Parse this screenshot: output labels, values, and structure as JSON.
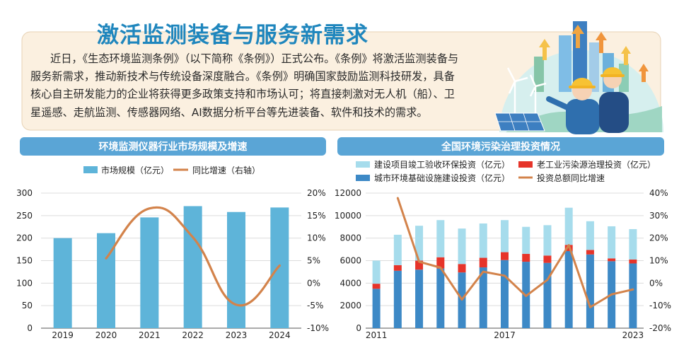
{
  "header": {
    "title": "激活监测装备与服务新需求",
    "paragraph_lines": [
      "近日，《生态环境监测条例》（以下简称《条例》）正式公布。《条例》将激活监测装备与",
      "服务新需求，推动新技术与传统设备深度融合。《条例》明确国家鼓励监测科技研发，具备",
      "核心自主研发能力的企业将获得更多政策支持和市场认可；将直接刺激对无人机（船）、卫",
      "星遥感、走航监测、传感器网络、AI数据分析平台等先进装备、软件和技术的需求。"
    ]
  },
  "colors": {
    "title_blue": "#1f86bd",
    "band_blue": "#5aa5d6",
    "card_bg": "#fbf0e0",
    "bar_blue": "#5eb4d9",
    "dark_blue": "#3d89c6",
    "light_blue": "#a6dcec",
    "red": "#e6342a",
    "orange": "#d3834b"
  },
  "chart_data": [
    {
      "type": "bar",
      "title": "环境监测仪器行业市场规模及增速",
      "legend": [
        "市场规模（亿元）",
        "同比增速（右轴）"
      ],
      "categories": [
        "2019",
        "2020",
        "2021",
        "2022",
        "2023",
        "2024"
      ],
      "series": [
        {
          "name": "市场规模（亿元）",
          "type": "bar",
          "values": [
            200,
            211,
            246,
            271,
            258,
            268
          ]
        },
        {
          "name": "同比增速（右轴）",
          "type": "line",
          "axis": "right",
          "values": [
            null,
            5.5,
            16.6,
            10.2,
            -4.8,
            3.9
          ]
        }
      ],
      "ylim": [
        0,
        300
      ],
      "yticks": [
        0,
        50,
        100,
        150,
        200,
        250,
        300
      ],
      "y2lim": [
        -10,
        20
      ],
      "y2ticks": [
        20,
        15,
        10,
        5,
        0,
        -5,
        -10
      ],
      "y2tick_labels": [
        "20%",
        "15%",
        "10%",
        "5%",
        "0%",
        "-5%",
        "-10%"
      ]
    },
    {
      "type": "bar",
      "stacked": true,
      "title": "全国环境污染治理投资情况",
      "legend": [
        "建设项目竣工验收环保投资（亿元）",
        "老工业污染源治理投资（亿元）",
        "城市环境基础设施建设投资（亿元）",
        "投资总额同比增速"
      ],
      "categories": [
        "2011",
        "2012",
        "2013",
        "2014",
        "2015",
        "2016",
        "2017",
        "2018",
        "2019",
        "2020",
        "2021",
        "2022",
        "2023"
      ],
      "x_tick_labels": [
        "2011",
        "2017",
        "2023"
      ],
      "series": [
        {
          "name": "城市环境基础设施建设投资（亿元）",
          "type": "bar",
          "values": [
            3500,
            5100,
            5200,
            5300,
            4950,
            5400,
            6050,
            5900,
            5800,
            6850,
            6550,
            5950,
            5750
          ]
        },
        {
          "name": "老工业污染源治理投资（亿元）",
          "type": "bar",
          "values": [
            450,
            500,
            800,
            1000,
            750,
            850,
            700,
            700,
            650,
            550,
            400,
            250,
            350
          ]
        },
        {
          "name": "建设项目竣工验收环保投资（亿元）",
          "type": "bar",
          "values": [
            2050,
            2700,
            3100,
            3300,
            3150,
            3050,
            2850,
            2400,
            2700,
            3300,
            2550,
            2850,
            2700
          ]
        },
        {
          "name": "投资总额同比增速",
          "type": "line",
          "axis": "right",
          "values": [
            null,
            37.8,
            9.5,
            6.9,
            -7.3,
            5.1,
            3.3,
            -5.7,
            1.5,
            16.9,
            -10.7,
            -5.0,
            -2.8
          ]
        }
      ],
      "ylim": [
        0,
        12000
      ],
      "yticks": [
        0,
        2000,
        4000,
        6000,
        8000,
        10000,
        12000
      ],
      "y2lim": [
        -20,
        40
      ],
      "y2ticks": [
        40,
        30,
        20,
        10,
        0,
        -10,
        -20
      ],
      "y2tick_labels": [
        "40%",
        "30%",
        "20%",
        "10%",
        "0%",
        "-10%",
        "-20%"
      ]
    }
  ]
}
